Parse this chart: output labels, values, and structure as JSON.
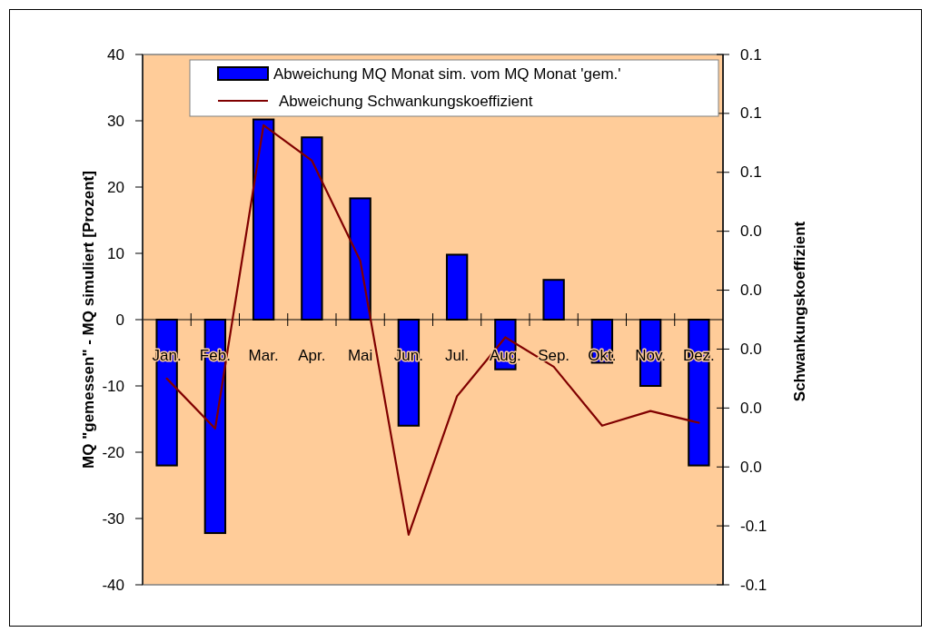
{
  "chart_data": {
    "type": "bar",
    "categories": [
      "Jan.",
      "Feb.",
      "Mar.",
      "Apr.",
      "Mai",
      "Jun.",
      "Jul.",
      "Aug.",
      "Sep.",
      "Okt.",
      "Nov.",
      "Dez."
    ],
    "ylabel": "MQ \"gemessen\" - MQ simuliert [Prozent]",
    "y2label": "Schwankungskoeffizient",
    "ylim": [
      -40,
      40
    ],
    "yticks": [
      -40,
      -30,
      -20,
      -10,
      0,
      10,
      20,
      30,
      40
    ],
    "y2lim": [
      -0.08,
      0.1
    ],
    "y2ticks": [
      {
        "value": -0.08,
        "label": "-0.1"
      },
      {
        "value": -0.06,
        "label": "-0.1"
      },
      {
        "value": -0.04,
        "label": "0.0"
      },
      {
        "value": -0.02,
        "label": "0.0"
      },
      {
        "value": 0,
        "label": "0.0"
      },
      {
        "value": 0.02,
        "label": "0.0"
      },
      {
        "value": 0.04,
        "label": "0.0"
      },
      {
        "value": 0.06,
        "label": "0.1"
      },
      {
        "value": 0.08,
        "label": "0.1"
      },
      {
        "value": 0.1,
        "label": "0.1"
      }
    ],
    "series": [
      {
        "name": "Abweichung MQ Monat sim. vom MQ Monat 'gem.'",
        "color": "#0000ff",
        "values": [
          -22,
          -32.2,
          30.2,
          27.5,
          18.3,
          -16,
          9.8,
          -7.5,
          6,
          -6.5,
          -10,
          -22
        ]
      },
      {
        "name": "Abweichung Schwankungskoeffizient",
        "type": "line",
        "axis": "y2",
        "color": "#800000",
        "values": [
          -0.01,
          -0.027,
          0.076,
          0.064,
          0.03,
          -0.063,
          -0.016,
          0.004,
          -0.006,
          -0.026,
          -0.021,
          -0.025
        ]
      }
    ],
    "legend": "top"
  }
}
